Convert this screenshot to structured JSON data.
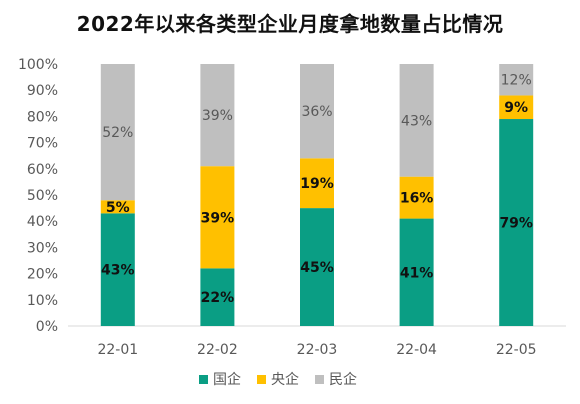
{
  "chart_data": {
    "type": "bar",
    "stacked": true,
    "title": "2022年以来各类型企业月度拿地数量占比情况",
    "xlabel": "",
    "ylabel": "",
    "ylim": [
      0,
      100
    ],
    "y_ticks": [
      "0%",
      "10%",
      "20%",
      "30%",
      "40%",
      "50%",
      "60%",
      "70%",
      "80%",
      "90%",
      "100%"
    ],
    "categories": [
      "22-01",
      "22-02",
      "22-03",
      "22-04",
      "22-05"
    ],
    "series": [
      {
        "name": "国企",
        "color": "#0a9e84",
        "values": [
          43,
          22,
          45,
          41,
          79
        ],
        "labels": [
          "43%",
          "22%",
          "45%",
          "41%",
          "79%"
        ],
        "label_color": "#111111",
        "label_bold": true
      },
      {
        "name": "央企",
        "color": "#ffc000",
        "values": [
          5,
          39,
          19,
          16,
          9
        ],
        "labels": [
          "5%",
          "39%",
          "19%",
          "16%",
          "9%"
        ],
        "label_color": "#111111",
        "label_bold": true
      },
      {
        "name": "民企",
        "color": "#bfbfbf",
        "values": [
          52,
          39,
          36,
          43,
          12
        ],
        "labels": [
          "52%",
          "39%",
          "36%",
          "43%",
          "12%"
        ],
        "label_color": "#595959",
        "label_bold": false
      }
    ],
    "grid": false,
    "legend": "bottom"
  }
}
